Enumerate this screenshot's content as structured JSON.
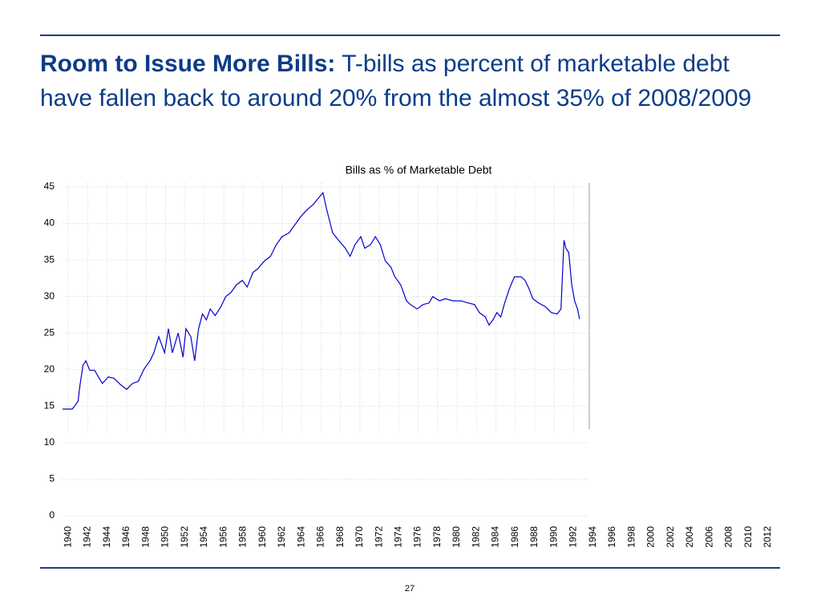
{
  "slide": {
    "title_bold": "Room to Issue More Bills:",
    "title_rest": "T-bills as percent of marketable debt have fallen back to around 20% from the almost 35% of 2008/2009",
    "page_number": "27"
  },
  "chart_data": {
    "type": "line",
    "title": "Bills as % of Marketable Debt",
    "color": "#0000cc",
    "grid": true,
    "xlim": [
      1939.4,
      2013
    ],
    "ylim": [
      0,
      45
    ],
    "xticks": [
      1940,
      1942,
      1944,
      1946,
      1948,
      1950,
      1952,
      1954,
      1956,
      1958,
      1960,
      1962,
      1964,
      1966,
      1968,
      1970,
      1972,
      1974,
      1976,
      1978,
      1980,
      1982,
      1984,
      1986,
      1988,
      1990,
      1992,
      1994,
      1996,
      1998,
      2000,
      2002,
      2004,
      2006,
      2008,
      2010,
      2012
    ],
    "yticks": [
      0,
      5,
      10,
      15,
      20,
      25,
      30,
      35,
      40,
      45
    ],
    "x": [
      1939.4,
      1940.4,
      1940.7,
      1941.0,
      1941.2,
      1941.5,
      1941.8,
      1942.2,
      1942.7,
      1943.1,
      1943.5,
      1944.1,
      1944.7,
      1945.4,
      1946.0,
      1946.6,
      1947.2,
      1947.8,
      1948.4,
      1948.8,
      1949.3,
      1949.9,
      1950.3,
      1950.7,
      1951.3,
      1951.8,
      1952.1,
      1952.6,
      1953.0,
      1953.4,
      1953.8,
      1954.2,
      1954.6,
      1955.1,
      1955.7,
      1956.2,
      1956.7,
      1957.3,
      1957.9,
      1958.4,
      1959.0,
      1959.5,
      1960.2,
      1960.8,
      1961.4,
      1962.0,
      1962.7,
      1963.3,
      1963.9,
      1964.5,
      1965.2,
      1965.7,
      1966.2,
      1966.6,
      1967.2,
      1967.8,
      1968.5,
      1969.0,
      1969.5,
      1970.1,
      1970.5,
      1971.1,
      1971.6,
      1972.1,
      1972.6,
      1973.2,
      1973.6,
      1974.2,
      1974.8,
      1975.2,
      1975.9,
      1976.5,
      1977.1,
      1977.5,
      1978.2,
      1978.8,
      1979.6,
      1980.4,
      1981.2,
      1981.8,
      1982.3,
      1982.9,
      1983.3,
      1983.7,
      1984.1,
      1984.5,
      1984.9,
      1985.4,
      1985.9,
      1986.6,
      1987.0,
      1987.4,
      1987.8,
      1988.4,
      1989.1,
      1989.7,
      1990.3,
      1990.7,
      1991.0,
      1991.2,
      1991.5,
      1991.8,
      1992.1,
      1992.4,
      1992.6
    ],
    "values": [
      14.6,
      14.6,
      15.1,
      15.7,
      17.9,
      20.6,
      21.2,
      19.9,
      19.9,
      19.0,
      18.1,
      19.0,
      18.8,
      17.9,
      17.3,
      18.1,
      18.4,
      20.1,
      21.2,
      22.3,
      24.5,
      22.3,
      25.6,
      22.3,
      25.0,
      21.7,
      25.6,
      24.5,
      21.2,
      25.6,
      27.6,
      26.8,
      28.3,
      27.4,
      28.6,
      30.0,
      30.5,
      31.6,
      32.2,
      31.3,
      33.3,
      33.8,
      34.9,
      35.5,
      37.1,
      38.2,
      38.7,
      39.8,
      40.9,
      41.8,
      42.6,
      43.4,
      44.2,
      41.8,
      38.7,
      37.7,
      36.6,
      35.5,
      37.1,
      38.2,
      36.6,
      37.1,
      38.2,
      37.1,
      34.9,
      34.0,
      32.7,
      31.6,
      29.4,
      28.9,
      28.3,
      28.9,
      29.1,
      30.0,
      29.4,
      29.7,
      29.4,
      29.4,
      29.1,
      28.9,
      27.8,
      27.2,
      26.1,
      26.8,
      27.8,
      27.2,
      29.1,
      31.1,
      32.7,
      32.7,
      32.2,
      31.1,
      29.7,
      29.1,
      28.6,
      27.8,
      27.6,
      28.3,
      37.7,
      36.6,
      36.0,
      31.6,
      29.4,
      28.3,
      26.9
    ]
  }
}
